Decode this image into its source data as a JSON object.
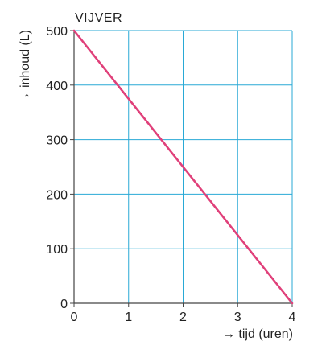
{
  "chart_data": {
    "type": "line",
    "title": "VIJVER",
    "xlabel": "→ tijd (uren)",
    "ylabel": "→ inhoud (L)",
    "xlim": [
      0,
      4
    ],
    "ylim": [
      0,
      500
    ],
    "x_ticks": [
      0,
      1,
      2,
      3,
      4
    ],
    "y_ticks": [
      0,
      100,
      200,
      300,
      400,
      500
    ],
    "grid": true,
    "series": [
      {
        "x": [
          0,
          4
        ],
        "y": [
          500,
          0
        ]
      }
    ],
    "colors": {
      "grid": "#29a9d6",
      "axis": "#444444",
      "line": "#e0407a"
    }
  }
}
